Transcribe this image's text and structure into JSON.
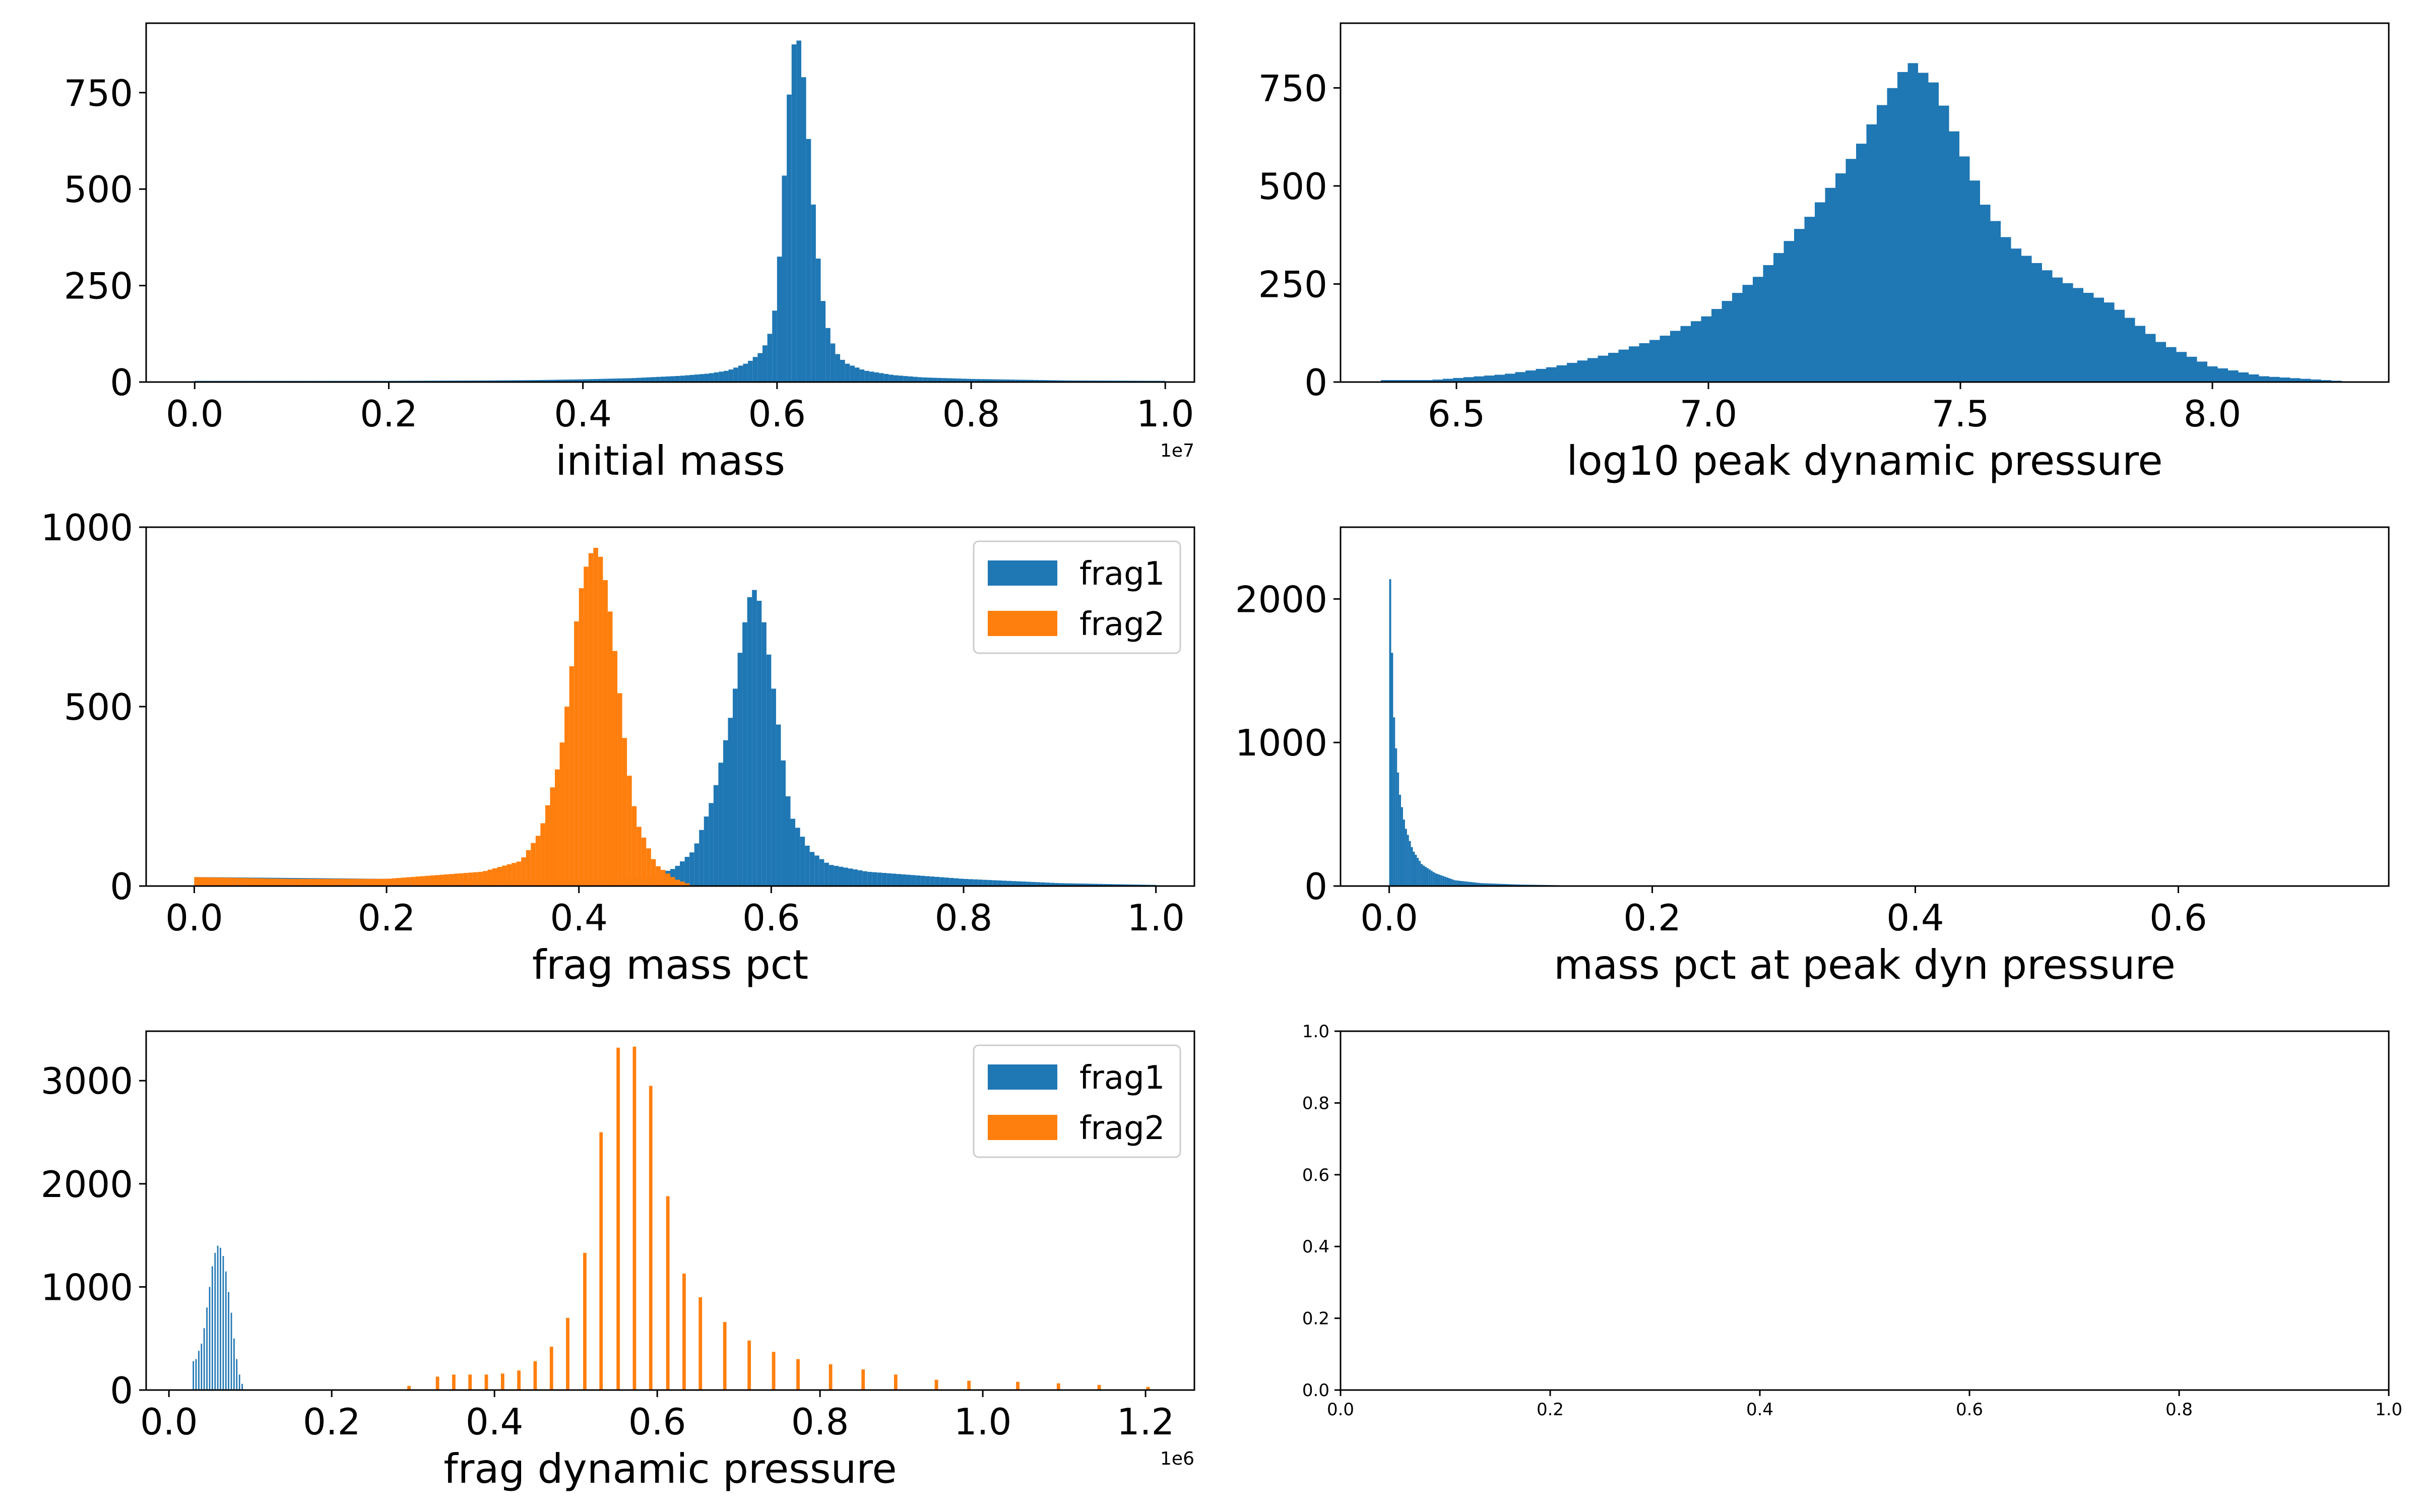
{
  "colors": {
    "blue": "#1f77b4",
    "orange": "#ff7f0e"
  },
  "chart_data": [
    {
      "type": "histogram",
      "xlabel": "initial mass",
      "offset_label": "1e7",
      "xlim": [
        -0.05,
        1.03
      ],
      "ylim": [
        0,
        930
      ],
      "xticks": [
        0.0,
        0.2,
        0.4,
        0.6,
        0.8,
        1.0
      ],
      "xtick_labels": [
        "0.0",
        "0.2",
        "0.4",
        "0.6",
        "0.8",
        "1.0"
      ],
      "yticks": [
        0,
        250,
        500,
        750
      ],
      "ytick_labels": [
        "0",
        "250",
        "500",
        "750"
      ],
      "series": [
        {
          "color": "blue",
          "bin_width": 0.005,
          "points": [
            [
              0.0,
              3
            ],
            [
              0.1,
              3
            ],
            [
              0.2,
              3
            ],
            [
              0.3,
              4
            ],
            [
              0.35,
              5
            ],
            [
              0.4,
              7
            ],
            [
              0.45,
              10
            ],
            [
              0.5,
              16
            ],
            [
              0.53,
              22
            ],
            [
              0.55,
              30
            ],
            [
              0.57,
              50
            ],
            [
              0.585,
              80
            ],
            [
              0.595,
              140
            ],
            [
              0.6,
              230
            ],
            [
              0.605,
              420
            ],
            [
              0.61,
              650
            ],
            [
              0.615,
              840
            ],
            [
              0.62,
              910
            ],
            [
              0.625,
              860
            ],
            [
              0.63,
              720
            ],
            [
              0.635,
              540
            ],
            [
              0.64,
              380
            ],
            [
              0.645,
              260
            ],
            [
              0.65,
              160
            ],
            [
              0.66,
              80
            ],
            [
              0.67,
              50
            ],
            [
              0.69,
              30
            ],
            [
              0.72,
              18
            ],
            [
              0.75,
              12
            ],
            [
              0.8,
              8
            ],
            [
              0.9,
              4
            ],
            [
              1.0,
              3
            ]
          ]
        }
      ]
    },
    {
      "type": "histogram",
      "xlabel": "log10 peak dynamic pressure",
      "xlim": [
        6.27,
        8.35
      ],
      "ylim": [
        0,
        915
      ],
      "xticks": [
        6.5,
        7.0,
        7.5,
        8.0
      ],
      "xtick_labels": [
        "6.5",
        "7.0",
        "7.5",
        "8.0"
      ],
      "yticks": [
        0,
        250,
        500,
        750
      ],
      "ytick_labels": [
        "0",
        "250",
        "500",
        "750"
      ],
      "series": [
        {
          "color": "blue",
          "bin_width": 0.0205,
          "points": [
            [
              6.35,
              5
            ],
            [
              6.45,
              5
            ],
            [
              6.5,
              10
            ],
            [
              6.6,
              20
            ],
            [
              6.7,
              40
            ],
            [
              6.8,
              70
            ],
            [
              6.9,
              110
            ],
            [
              7.0,
              170
            ],
            [
              7.1,
              270
            ],
            [
              7.2,
              420
            ],
            [
              7.3,
              600
            ],
            [
              7.35,
              720
            ],
            [
              7.4,
              820
            ],
            [
              7.45,
              760
            ],
            [
              7.5,
              600
            ],
            [
              7.55,
              450
            ],
            [
              7.6,
              350
            ],
            [
              7.7,
              260
            ],
            [
              7.8,
              200
            ],
            [
              7.9,
              100
            ],
            [
              8.0,
              40
            ],
            [
              8.1,
              15
            ],
            [
              8.25,
              3
            ]
          ]
        }
      ]
    },
    {
      "type": "histogram",
      "xlabel": "frag mass pct",
      "xlim": [
        -0.05,
        1.04
      ],
      "ylim": [
        0,
        1000
      ],
      "xticks": [
        0.0,
        0.2,
        0.4,
        0.6,
        0.8,
        1.0
      ],
      "xtick_labels": [
        "0.0",
        "0.2",
        "0.4",
        "0.6",
        "0.8",
        "1.0"
      ],
      "yticks": [
        0,
        500,
        1000
      ],
      "ytick_labels": [
        "0",
        "500",
        "1000"
      ],
      "legend": {
        "loc": "upper right"
      },
      "series": [
        {
          "name": "frag1",
          "color": "blue",
          "bin_width": 0.005,
          "points": [
            [
              0.0,
              25
            ],
            [
              0.2,
              20
            ],
            [
              0.4,
              15
            ],
            [
              0.45,
              20
            ],
            [
              0.48,
              30
            ],
            [
              0.5,
              50
            ],
            [
              0.52,
              100
            ],
            [
              0.54,
              250
            ],
            [
              0.56,
              500
            ],
            [
              0.57,
              700
            ],
            [
              0.58,
              840
            ],
            [
              0.59,
              780
            ],
            [
              0.6,
              600
            ],
            [
              0.61,
              400
            ],
            [
              0.62,
              200
            ],
            [
              0.64,
              100
            ],
            [
              0.66,
              60
            ],
            [
              0.7,
              40
            ],
            [
              0.8,
              20
            ],
            [
              0.9,
              8
            ],
            [
              1.0,
              3
            ]
          ]
        },
        {
          "name": "frag2",
          "color": "orange",
          "bin_width": 0.005,
          "points": [
            [
              0.0,
              25
            ],
            [
              0.1,
              20
            ],
            [
              0.2,
              20
            ],
            [
              0.3,
              40
            ],
            [
              0.34,
              70
            ],
            [
              0.36,
              150
            ],
            [
              0.38,
              350
            ],
            [
              0.39,
              550
            ],
            [
              0.4,
              800
            ],
            [
              0.41,
              920
            ],
            [
              0.42,
              950
            ],
            [
              0.43,
              820
            ],
            [
              0.44,
              600
            ],
            [
              0.45,
              350
            ],
            [
              0.46,
              180
            ],
            [
              0.48,
              60
            ],
            [
              0.5,
              20
            ],
            [
              0.52,
              0
            ],
            [
              1.0,
              0
            ]
          ]
        }
      ]
    },
    {
      "type": "histogram",
      "xlabel": "mass pct at peak dyn pressure",
      "xlim": [
        -0.037,
        0.76
      ],
      "ylim": [
        0,
        2500
      ],
      "xticks": [
        0.0,
        0.2,
        0.4,
        0.6
      ],
      "xtick_labels": [
        "0.0",
        "0.2",
        "0.4",
        "0.6"
      ],
      "yticks": [
        0,
        1000,
        2000
      ],
      "ytick_labels": [
        "0",
        "1000",
        "2000"
      ],
      "series": [
        {
          "color": "blue",
          "bin_width": 0.0015,
          "points": [
            [
              0.0,
              2400
            ],
            [
              0.002,
              1700
            ],
            [
              0.004,
              1100
            ],
            [
              0.008,
              650
            ],
            [
              0.012,
              420
            ],
            [
              0.018,
              250
            ],
            [
              0.025,
              150
            ],
            [
              0.035,
              90
            ],
            [
              0.05,
              40
            ],
            [
              0.07,
              20
            ],
            [
              0.1,
              10
            ],
            [
              0.14,
              4
            ],
            [
              0.2,
              1
            ],
            [
              0.3,
              0.5
            ],
            [
              0.4,
              0
            ]
          ]
        }
      ]
    },
    {
      "type": "bar",
      "xlabel": "frag dynamic pressure",
      "offset_label": "1e6",
      "xlim": [
        -0.028,
        1.26
      ],
      "ylim": [
        0,
        3480
      ],
      "xticks": [
        0.0,
        0.2,
        0.4,
        0.6,
        0.8,
        1.0,
        1.2
      ],
      "xtick_labels": [
        "0.0",
        "0.2",
        "0.4",
        "0.6",
        "0.8",
        "1.0",
        "1.2"
      ],
      "yticks": [
        0,
        1000,
        2000,
        3000
      ],
      "ytick_labels": [
        "0",
        "1000",
        "2000",
        "3000"
      ],
      "legend": {
        "loc": "upper right"
      },
      "series": [
        {
          "name": "frag1",
          "color": "blue",
          "bar_width": 0.0017,
          "x": [
            0.03,
            0.0333,
            0.0367,
            0.04,
            0.0433,
            0.0467,
            0.05,
            0.0533,
            0.0567,
            0.06,
            0.0633,
            0.0667,
            0.07,
            0.0733,
            0.0767,
            0.08,
            0.0833,
            0.0867,
            0.09
          ],
          "values": [
            280,
            300,
            380,
            450,
            600,
            800,
            1000,
            1200,
            1330,
            1400,
            1380,
            1300,
            1150,
            950,
            750,
            500,
            300,
            150,
            60
          ]
        },
        {
          "name": "frag2",
          "color": "orange",
          "bar_width": 0.0042,
          "x": [
            0.295,
            0.33,
            0.35,
            0.37,
            0.39,
            0.41,
            0.43,
            0.45,
            0.47,
            0.49,
            0.511,
            0.531,
            0.552,
            0.572,
            0.592,
            0.613,
            0.633,
            0.653,
            0.683,
            0.713,
            0.743,
            0.773,
            0.813,
            0.853,
            0.893,
            0.943,
            0.983,
            1.043,
            1.093,
            1.143,
            1.203
          ],
          "values": [
            40,
            130,
            150,
            150,
            150,
            160,
            190,
            280,
            420,
            700,
            1330,
            2500,
            3320,
            3330,
            2950,
            1880,
            1130,
            900,
            660,
            480,
            370,
            300,
            250,
            200,
            150,
            100,
            90,
            80,
            65,
            50,
            30
          ]
        }
      ]
    },
    {
      "type": "empty",
      "xlabel": "",
      "xlim": [
        0,
        1
      ],
      "ylim": [
        0,
        1
      ],
      "xticks": [
        0.0,
        0.2,
        0.4,
        0.6,
        0.8,
        1.0
      ],
      "xtick_labels": [
        "0.0",
        "0.2",
        "0.4",
        "0.6",
        "0.8",
        "1.0"
      ],
      "yticks": [
        0.0,
        0.2,
        0.4,
        0.6,
        0.8,
        1.0
      ],
      "ytick_labels": [
        "0.0",
        "0.2",
        "0.4",
        "0.6",
        "0.8",
        "1.0"
      ],
      "series": []
    }
  ]
}
